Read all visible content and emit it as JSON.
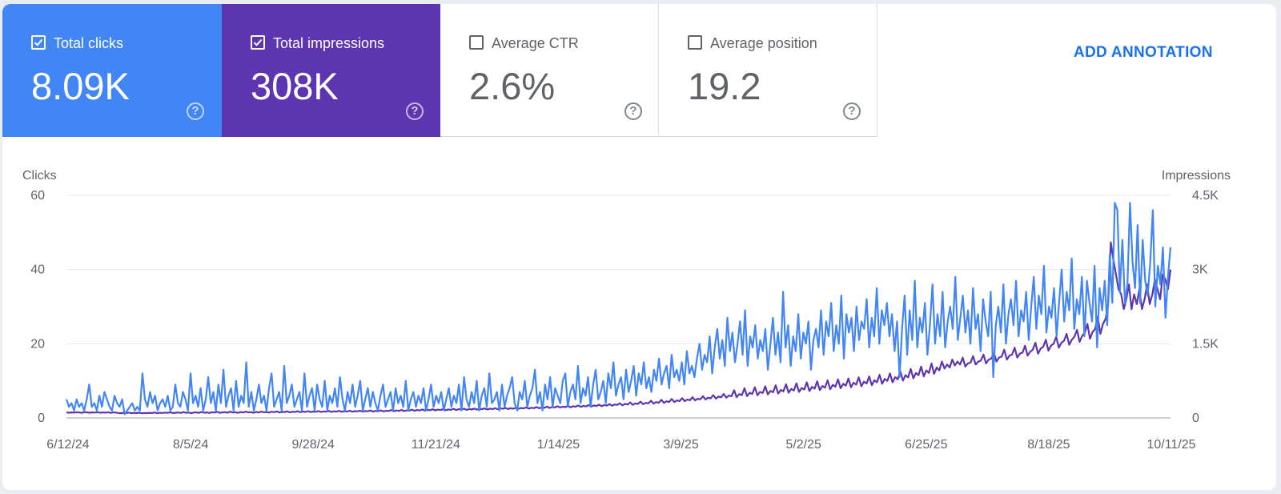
{
  "cards": [
    {
      "label": "Total clicks",
      "value": "8.09K",
      "checked": true,
      "color": "#4285f4"
    },
    {
      "label": "Total impressions",
      "value": "308K",
      "checked": true,
      "color": "#5e35b1"
    },
    {
      "label": "Average CTR",
      "value": "2.6%",
      "checked": false,
      "color": "#ffffff"
    },
    {
      "label": "Average position",
      "value": "19.2",
      "checked": false,
      "color": "#ffffff"
    }
  ],
  "help_glyph": "?",
  "add_annotation_label": "ADD ANNOTATION",
  "chart_data": {
    "type": "line",
    "title": "",
    "ylabel_left": "Clicks",
    "ylabel_right": "Impressions",
    "ylim_left": [
      0,
      60
    ],
    "ylim_right": [
      0,
      4500
    ],
    "yticks_left": [
      "0",
      "20",
      "40",
      "60"
    ],
    "yticks_right": [
      "0",
      "1.5K",
      "3K",
      "4.5K"
    ],
    "xticks": [
      "6/12/24",
      "8/5/24",
      "9/28/24",
      "11/21/24",
      "1/14/25",
      "3/9/25",
      "5/2/25",
      "6/25/25",
      "8/18/25",
      "10/11/25"
    ],
    "grid": true,
    "series": [
      {
        "name": "Clicks",
        "axis": "left",
        "color": "#4285f4",
        "values": [
          5,
          3,
          4,
          2,
          5,
          3,
          4,
          2,
          5,
          9,
          3,
          4,
          2,
          6,
          3,
          7,
          5,
          3,
          2,
          6,
          4,
          3,
          5,
          1,
          2,
          3,
          4,
          2,
          3,
          2,
          12,
          5,
          3,
          7,
          4,
          6,
          2,
          4,
          5,
          3,
          6,
          2,
          3,
          9,
          4,
          3,
          7,
          5,
          2,
          12,
          4,
          6,
          3,
          8,
          2,
          5,
          11,
          4,
          7,
          2,
          9,
          4,
          13,
          3,
          6,
          8,
          2,
          10,
          3,
          6,
          4,
          15,
          3,
          7,
          2,
          5,
          9,
          4,
          6,
          2,
          8,
          12,
          3,
          5,
          7,
          2,
          14,
          4,
          6,
          9,
          3,
          5,
          7,
          2,
          12,
          3,
          6,
          8,
          2,
          9,
          5,
          3,
          10,
          2,
          6,
          4,
          8,
          3,
          11,
          5,
          2,
          7,
          4,
          9,
          3,
          6,
          10,
          2,
          5,
          8,
          3,
          7,
          4,
          2,
          6,
          9,
          3,
          5,
          7,
          2,
          8,
          4,
          6,
          3,
          10,
          2,
          5,
          7,
          3,
          6,
          4,
          8,
          2,
          5,
          9,
          3,
          6,
          4,
          7,
          2,
          5,
          8,
          3,
          6,
          4,
          9,
          2,
          11,
          5,
          3,
          7,
          4,
          10,
          2,
          6,
          8,
          3,
          12,
          4,
          5,
          7,
          2,
          9,
          3,
          6,
          8,
          11,
          4,
          2,
          7,
          5,
          10,
          3,
          6,
          8,
          13,
          4,
          7,
          2,
          9,
          5,
          11,
          3,
          8,
          6,
          4,
          10,
          12,
          3,
          7,
          9,
          5,
          14,
          4,
          8,
          6,
          11,
          3,
          9,
          13,
          5,
          7,
          10,
          4,
          12,
          8,
          15,
          6,
          9,
          11,
          5,
          13,
          7,
          10,
          14,
          6,
          12,
          9,
          15,
          8,
          11,
          7,
          13,
          10,
          16,
          9,
          12,
          14,
          8,
          17,
          11,
          13,
          10,
          15,
          9,
          18,
          12,
          14,
          11,
          16,
          20,
          13,
          17,
          15,
          22,
          12,
          19,
          24,
          16,
          21,
          14,
          27,
          18,
          23,
          15,
          20,
          26,
          17,
          29,
          14,
          22,
          19,
          25,
          16,
          21,
          18,
          24,
          13,
          20,
          27,
          17,
          23,
          15,
          34,
          19,
          25,
          14,
          22,
          18,
          28,
          16,
          23,
          20,
          26,
          13,
          21,
          24,
          19,
          29,
          17,
          26,
          22,
          31,
          18,
          25,
          20,
          33,
          16,
          28,
          23,
          27,
          18,
          30,
          21,
          26,
          24,
          32,
          19,
          27,
          22,
          35,
          20,
          29,
          25,
          31,
          22,
          28,
          18,
          26,
          11,
          24,
          33,
          17,
          29,
          21,
          37,
          19,
          27,
          23,
          31,
          17,
          25,
          36,
          20,
          28,
          22,
          34,
          19,
          26,
          30,
          24,
          38,
          21,
          27,
          33,
          23,
          29,
          20,
          35,
          24,
          28,
          18,
          32,
          26,
          22,
          34,
          11,
          25,
          30,
          23,
          36,
          20,
          28,
          32,
          25,
          37,
          22,
          29,
          26,
          34,
          21,
          30,
          38,
          24,
          33,
          28,
          41,
          23,
          30,
          27,
          35,
          22,
          31,
          40,
          26,
          34,
          29,
          43,
          24,
          32,
          28,
          38,
          22,
          37,
          31,
          26,
          41,
          19,
          35,
          29,
          37,
          25,
          44,
          31,
          58,
          56,
          34,
          48,
          31,
          36,
          58,
          42,
          35,
          52,
          31,
          48,
          37,
          33,
          42,
          56,
          30,
          41,
          36,
          46,
          27,
          38,
          46
        ]
      },
      {
        "name": "Impressions",
        "axis": "right",
        "color": "#5e35b1",
        "values": [
          110,
          105,
          112,
          108,
          115,
          110,
          103,
          118,
          112,
          106,
          114,
          109,
          116,
          104,
          111,
          107,
          115,
          102,
          113,
          108,
          100,
          96,
          104,
          99,
          108,
          95,
          102,
          98,
          107,
          94,
          101,
          97,
          103,
          99,
          110,
          96,
          104,
          100,
          108,
          102,
          115,
          98,
          106,
          112,
          100,
          118,
          104,
          110,
          96,
          108,
          114,
          102,
          120,
          106,
          112,
          100,
          116,
          108,
          124,
          104,
          112,
          118,
          106,
          126,
          110,
          116,
          102,
          120,
          108,
          128,
          112,
          118,
          104,
          122,
          110,
          130,
          114,
          120,
          108,
          126,
          116,
          132,
          110,
          122,
          118,
          134,
          112,
          126,
          120,
          136,
          116,
          128,
          122,
          138,
          118,
          130,
          124,
          140,
          120,
          132,
          126,
          142,
          122,
          134,
          128,
          144,
          124,
          136,
          130,
          146,
          126,
          138,
          132,
          148,
          128,
          140,
          134,
          150,
          130,
          142,
          136,
          154,
          132,
          144,
          140,
          158,
          136,
          150,
          142,
          162,
          140,
          154,
          148,
          168,
          144,
          160,
          152,
          172,
          148,
          164,
          156,
          176,
          152,
          168,
          160,
          180,
          156,
          172,
          164,
          184,
          160,
          176,
          168,
          188,
          164,
          180,
          172,
          190,
          168,
          184,
          176,
          192,
          172,
          188,
          180,
          196,
          176,
          192,
          184,
          200,
          180,
          196,
          188,
          204,
          184,
          200,
          194,
          212,
          190,
          206,
          198,
          220,
          196,
          214,
          206,
          228,
          202,
          220,
          212,
          236,
          210,
          228,
          218,
          244,
          216,
          236,
          226,
          252,
          224,
          244,
          232,
          260,
          230,
          252,
          240,
          268,
          238,
          260,
          250,
          280,
          248,
          272,
          262,
          296,
          256,
          284,
          272,
          312,
          266,
          294,
          282,
          330,
          278,
          306,
          294,
          348,
          290,
          320,
          306,
          366,
          304,
          336,
          322,
          384,
          320,
          354,
          340,
          400,
          338,
          372,
          358,
          420,
          354,
          390,
          376,
          440,
          372,
          410,
          396,
          462,
          390,
          432,
          416,
          486,
          410,
          454,
          438,
          560,
          420,
          482,
          462,
          600,
          440,
          508,
          486,
          620,
          458,
          526,
          504,
          640,
          476,
          546,
          520,
          660,
          492,
          566,
          538,
          680,
          510,
          586,
          556,
          700,
          526,
          604,
          574,
          720,
          544,
          626,
          592,
          740,
          562,
          646,
          612,
          760,
          580,
          668,
          632,
          780,
          600,
          690,
          652,
          800,
          620,
          712,
          674,
          820,
          640,
          734,
          696,
          840,
          662,
          760,
          720,
          870,
          690,
          790,
          748,
          900,
          720,
          826,
          780,
          940,
          756,
          864,
          820,
          990,
          800,
          910,
          864,
          1040,
          840,
          960,
          910,
          1100,
          890,
          1020,
          960,
          1140,
          1000,
          1080,
          1020,
          1180,
          1060,
          1140,
          1080,
          1220,
          1040,
          1100,
          1120,
          1250,
          1080,
          1140,
          1160,
          1280,
          1100,
          1180,
          1200,
          1320,
          1140,
          1220,
          1240,
          1380,
          1180,
          1260,
          1280,
          1420,
          1220,
          1300,
          1320,
          1460,
          1260,
          1340,
          1380,
          1520,
          1300,
          1400,
          1440,
          1580,
          1360,
          1460,
          1500,
          1640,
          1420,
          1520,
          1560,
          1700,
          1480,
          1580,
          1640,
          1780,
          1540,
          1660,
          1720,
          1900,
          1600,
          1740,
          1800,
          2050,
          1700,
          1900,
          2000,
          2300,
          3550,
          3200,
          2900,
          2600,
          2500,
          2200,
          2400,
          2700,
          2200,
          2500,
          2300,
          2600,
          2200,
          2400,
          2700,
          2300,
          2500,
          2800,
          2600,
          2400,
          2900,
          2800,
          2600,
          3000
        ]
      }
    ]
  }
}
